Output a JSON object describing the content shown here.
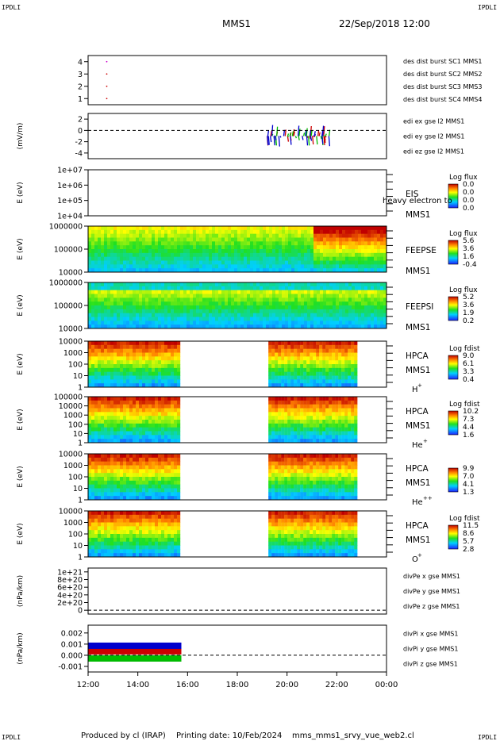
{
  "header": {
    "corner_label": "IPDLI",
    "spacecraft": "MMS1",
    "date": "22/Sep/2018 12:00"
  },
  "footer": {
    "produced_by": "Produced by cl (IRAP)",
    "printing_date": "Printing date: 10/Feb/2024",
    "filename": "mms_mms1_srvy_vue_web2.cl"
  },
  "chart_data": {
    "type": "multi-panel time series / spectrogram",
    "time_axis": {
      "ticks": [
        "12:00",
        "14:00",
        "16:00",
        "18:00",
        "20:00",
        "22:00",
        "00:00"
      ],
      "range_hours": [
        12,
        24
      ]
    },
    "panels": [
      {
        "id": "dist",
        "type": "scatter",
        "ylabel": "",
        "yticks": [
          "1",
          "2",
          "3",
          "4"
        ],
        "ylim": [
          0.5,
          4.5
        ],
        "legend": [
          {
            "name": "des dist burst SC1 MMS1",
            "color": "#0000cc"
          },
          {
            "name": "des dist burst SC2 MMS2",
            "color": "#cc00cc"
          },
          {
            "name": "des dist burst SC3 MMS3",
            "color": "#cc0000"
          },
          {
            "name": "des dist burst SC4 MMS4",
            "color": "#00bb00"
          }
        ],
        "points": [
          {
            "t": 12.75,
            "y": 4,
            "color": "#cc00cc"
          },
          {
            "t": 12.75,
            "y": 3,
            "color": "#cc0000"
          },
          {
            "t": 12.75,
            "y": 2,
            "color": "#cc0000"
          },
          {
            "t": 12.75,
            "y": 1,
            "color": "#cc0000"
          }
        ]
      },
      {
        "id": "edi",
        "type": "line",
        "ylabel": "(mV/m)",
        "yticks": [
          "-4",
          "-2",
          "0",
          "2"
        ],
        "ylim": [
          -5,
          3
        ],
        "zero_line": true,
        "legend": [
          {
            "name": "edi ex gse l2 MMS1",
            "color": "#cc0000"
          },
          {
            "name": "edi ey gse l2 MMS1",
            "color": "#00bb00"
          },
          {
            "name": "edi ez gse l2 MMS1",
            "color": "#0000cc"
          }
        ],
        "active_interval": [
          19.2,
          21.7
        ]
      },
      {
        "id": "eis",
        "type": "spectrogram",
        "ylabel": "E (eV)",
        "yticks": [
          "1e+04",
          "1e+05",
          "1e+06",
          "1e+07"
        ],
        "label_lines": [
          "EIS",
          "MMS1"
        ],
        "overlay_text": "heavy electron to",
        "cbar_title": "Log flux",
        "cbar_ticks": [
          "0.0",
          "0.0",
          "0.0",
          "0.0"
        ],
        "empty": true
      },
      {
        "id": "feepse",
        "type": "spectrogram",
        "ylabel": "E (eV)",
        "yticks": [
          "10000",
          "100000",
          "1000000"
        ],
        "label_lines": [
          "FEEPSE",
          "MMS1"
        ],
        "cbar_title": "Log flux",
        "cbar_ticks": [
          "5.6",
          "3.6",
          "1.6",
          "-0.4"
        ],
        "coverage": [
          [
            12,
            24
          ]
        ]
      },
      {
        "id": "feepsi",
        "type": "spectrogram",
        "ylabel": "E (eV)",
        "yticks": [
          "10000",
          "100000",
          "1000000"
        ],
        "label_lines": [
          "FEEPSI",
          "MMS1"
        ],
        "cbar_title": "Log flux",
        "cbar_ticks": [
          "5.2",
          "3.6",
          "1.9",
          "0.2"
        ],
        "coverage": [
          [
            12,
            24
          ]
        ]
      },
      {
        "id": "hpca_h",
        "type": "spectrogram",
        "ylabel": "E (eV)",
        "yticks": [
          "1",
          "10",
          "100",
          "1000",
          "10000"
        ],
        "label_lines": [
          "HPCA",
          "MMS1"
        ],
        "species": "H",
        "charge": "+",
        "cbar_title": "Log fdist",
        "cbar_ticks": [
          "9.0",
          "6.1",
          "3.3",
          "0.4"
        ],
        "coverage": [
          [
            12,
            15.75
          ],
          [
            19.25,
            22.85
          ]
        ]
      },
      {
        "id": "hpca_he1",
        "type": "spectrogram",
        "ylabel": "E (eV)",
        "yticks": [
          "1",
          "10",
          "100",
          "1000",
          "10000",
          "100000"
        ],
        "label_lines": [
          "HPCA",
          "MMS1"
        ],
        "species": "He",
        "charge": "+",
        "cbar_title": "Log fdist",
        "cbar_ticks": [
          "10.2",
          "7.3",
          "4.4",
          "1.6"
        ],
        "coverage": [
          [
            12,
            15.75
          ],
          [
            19.25,
            22.85
          ]
        ]
      },
      {
        "id": "hpca_he2",
        "type": "spectrogram",
        "ylabel": "E (eV)",
        "yticks": [
          "1",
          "10",
          "100",
          "1000",
          "10000"
        ],
        "label_lines": [
          "HPCA",
          "MMS1"
        ],
        "species": "He",
        "charge": "++",
        "cbar_title": "",
        "cbar_ticks": [
          "9.9",
          "7.0",
          "4.1",
          "1.3"
        ],
        "coverage": [
          [
            12,
            15.75
          ],
          [
            19.25,
            22.85
          ]
        ]
      },
      {
        "id": "hpca_o",
        "type": "spectrogram",
        "ylabel": "E (eV)",
        "yticks": [
          "1",
          "10",
          "100",
          "1000",
          "10000"
        ],
        "label_lines": [
          "HPCA",
          "MMS1"
        ],
        "species": "O",
        "charge": "+",
        "cbar_title": "Log fdist",
        "cbar_ticks": [
          "11.5",
          "8.6",
          "5.7",
          "2.8"
        ],
        "coverage": [
          [
            12,
            15.75
          ],
          [
            19.25,
            22.85
          ]
        ]
      },
      {
        "id": "divpe",
        "type": "line",
        "ylabel": "(nPa/km)",
        "yticks": [
          "0",
          "2e+20",
          "4e+20",
          "6e+20",
          "8e+20",
          "1e+21"
        ],
        "ylim": [
          -1e+20,
          1.1e+21
        ],
        "zero_line": true,
        "legend": [
          {
            "name": "divPe x gse MMS1",
            "color": "#cc0000"
          },
          {
            "name": "divPe y gse MMS1",
            "color": "#00bb00"
          },
          {
            "name": "divPe z gse MMS1",
            "color": "#0000cc"
          }
        ]
      },
      {
        "id": "divpi",
        "type": "line",
        "ylabel": "(nPa/km)",
        "yticks": [
          "-0.001",
          "0.000",
          "0.001",
          "0.002"
        ],
        "ylim": [
          -0.0015,
          0.0027
        ],
        "zero_line": true,
        "legend": [
          {
            "name": "divPi x gse MMS1",
            "color": "#cc0000"
          },
          {
            "name": "divPi y gse MMS1",
            "color": "#00bb00"
          },
          {
            "name": "divPi z gse MMS1",
            "color": "#0000cc"
          }
        ],
        "active_interval": [
          12,
          15.75
        ]
      }
    ]
  }
}
